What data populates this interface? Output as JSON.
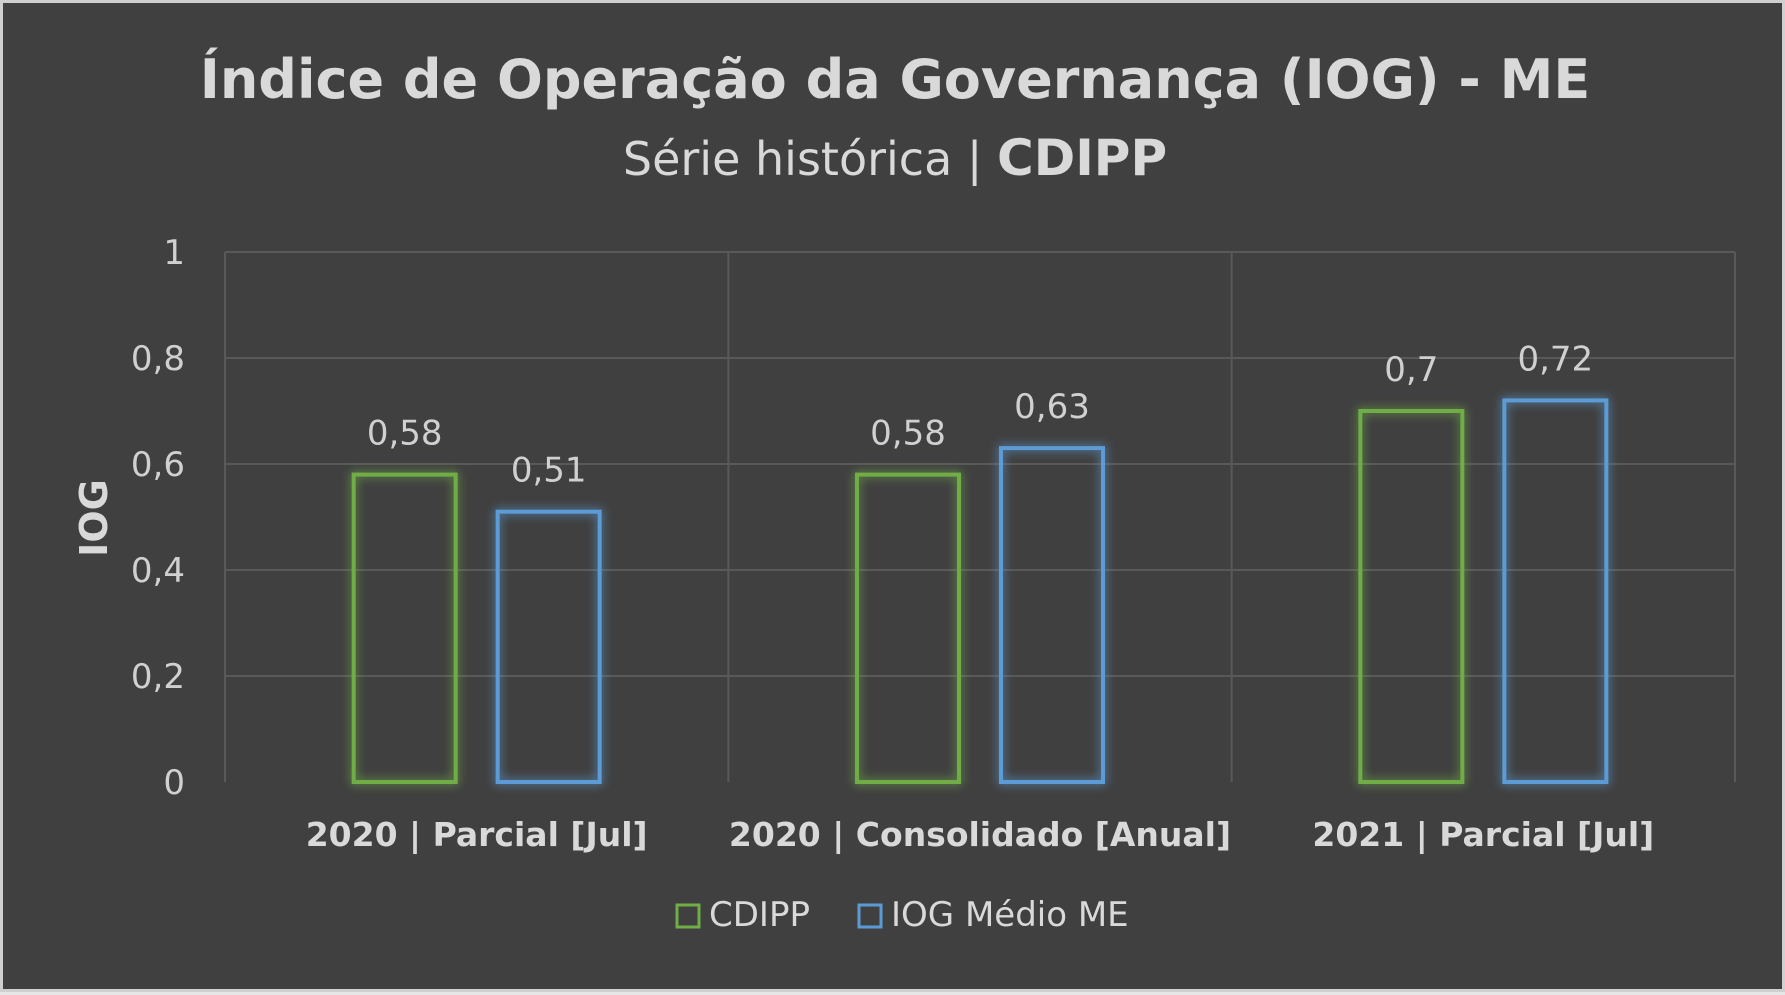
{
  "chart_data": {
    "type": "bar",
    "title": "Índice de Operação da Governança (IOG) - ME",
    "subtitle_prefix": "Série histórica | ",
    "subtitle_strong": "CDIPP",
    "xlabel": "",
    "ylabel": "IOG",
    "ylim": [
      0,
      1
    ],
    "yticks": [
      0,
      0.2,
      0.4,
      0.6,
      0.8,
      1
    ],
    "ytick_labels": [
      "0",
      "0,2",
      "0,4",
      "0,6",
      "0,8",
      "1"
    ],
    "categories": [
      "2020 | Parcial [Jul]",
      "2020 | Consolidado [Anual]",
      "2021 | Parcial [Jul]"
    ],
    "series": [
      {
        "name": "CDIPP",
        "color": "#70ad47",
        "values": [
          0.58,
          0.58,
          0.7
        ],
        "labels": [
          "0,58",
          "0,58",
          "0,7"
        ]
      },
      {
        "name": "IOG Médio ME",
        "color": "#5b9bd5",
        "values": [
          0.51,
          0.63,
          0.72
        ],
        "labels": [
          "0,51",
          "0,63",
          "0,72"
        ]
      }
    ],
    "grid": true,
    "legend": "bottom-center"
  }
}
